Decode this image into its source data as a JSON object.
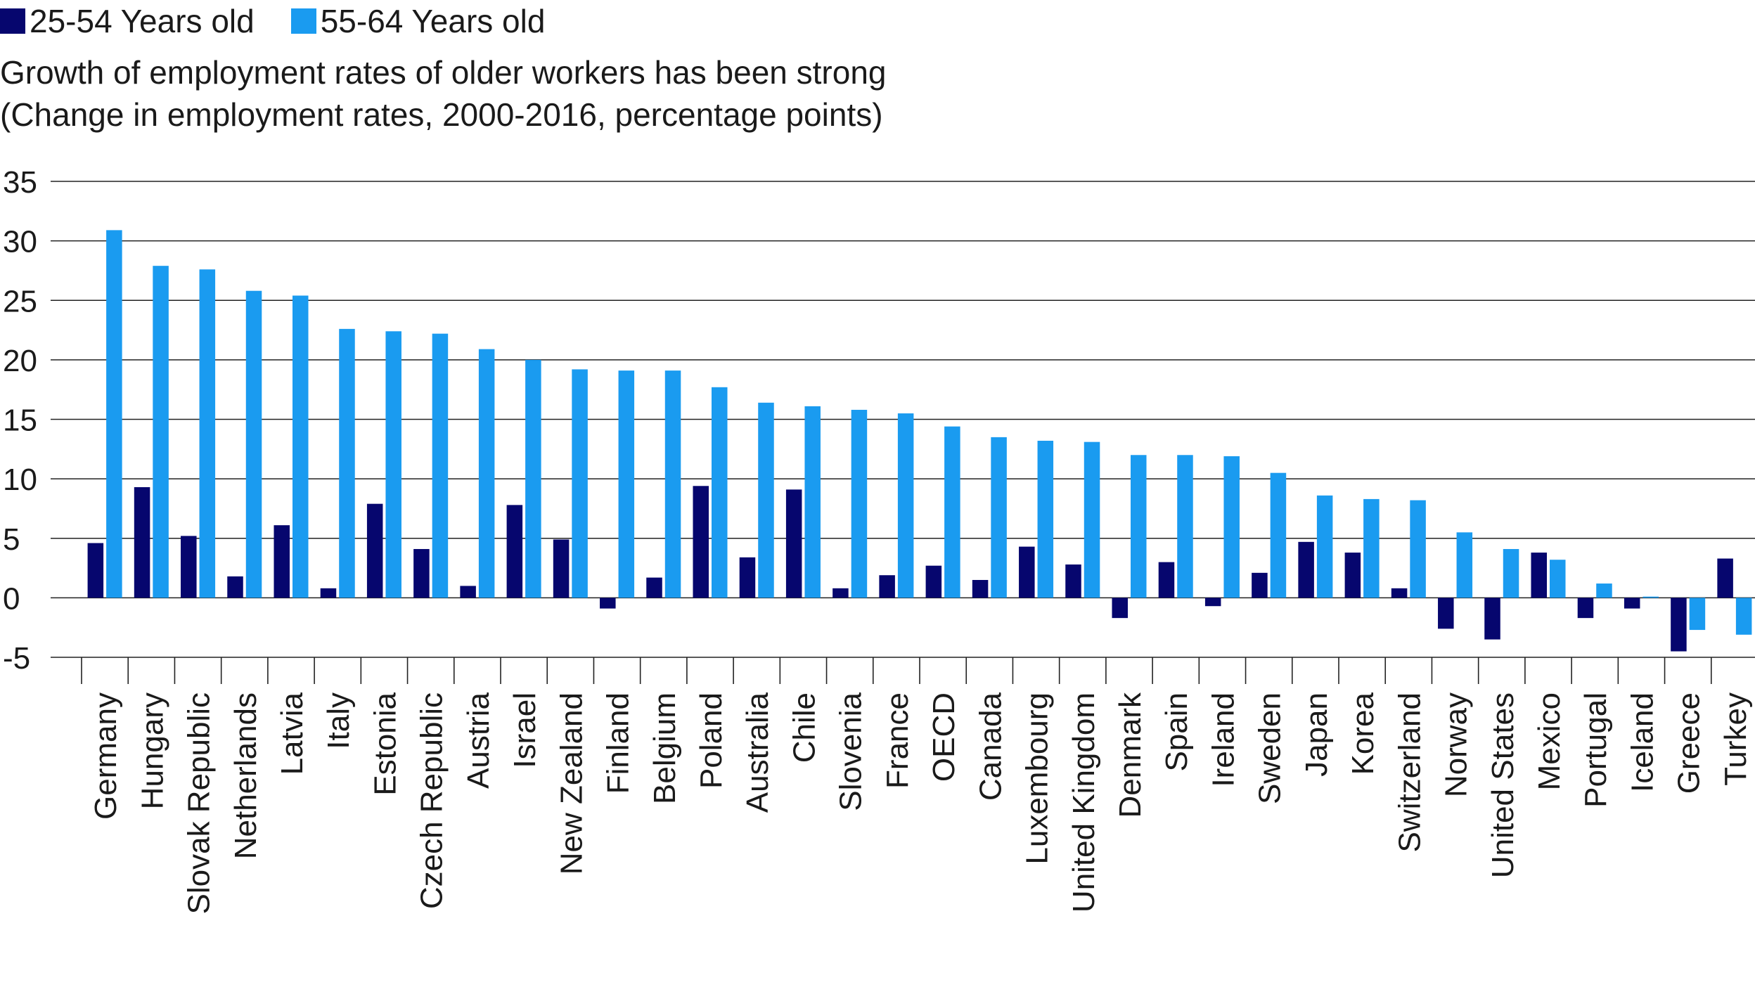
{
  "legend": [
    {
      "label": "25-54 Years old",
      "color": "#06066e"
    },
    {
      "label": "55-64 Years old",
      "color": "#1a9bf0"
    }
  ],
  "title_line1": "Growth of employment rates of older workers has been strong",
  "title_line2": "(Change in employment rates, 2000-2016, percentage points)",
  "chart_data": {
    "type": "bar",
    "title": "Growth of employment rates of older workers has been strong",
    "subtitle": "(Change in employment rates, 2000-2016, percentage points)",
    "xlabel": "",
    "ylabel": "",
    "ylim": [
      -5,
      35
    ],
    "yticks": [
      35,
      30,
      25,
      20,
      15,
      10,
      5,
      0,
      -5
    ],
    "grid": true,
    "legend_position": "top-left",
    "categories": [
      "Germany",
      "Hungary",
      "Slovak Republic",
      "Netherlands",
      "Latvia",
      "Italy",
      "Estonia",
      "Czech Republic",
      "Austria",
      "Israel",
      "New Zealand",
      "Finland",
      "Belgium",
      "Poland",
      "Australia",
      "Chile",
      "Slovenia",
      "France",
      "OECD",
      "Canada",
      "Luxembourg",
      "United Kingdom",
      "Denmark",
      "Spain",
      "Ireland",
      "Sweden",
      "Japan",
      "Korea",
      "Switzerland",
      "Norway",
      "United States",
      "Mexico",
      "Portugal",
      "Iceland",
      "Greece",
      "Turkey"
    ],
    "series": [
      {
        "name": "25-54 Years old",
        "color": "#06066e",
        "values": [
          4.6,
          9.3,
          5.2,
          1.8,
          6.1,
          0.8,
          7.9,
          4.1,
          1.0,
          7.8,
          4.9,
          -0.9,
          1.7,
          9.4,
          3.4,
          9.1,
          0.8,
          1.9,
          2.7,
          1.5,
          4.3,
          2.8,
          -1.7,
          3.0,
          -0.7,
          2.1,
          4.7,
          3.8,
          0.8,
          -2.6,
          -3.5,
          3.8,
          -1.7,
          -0.9,
          -4.5,
          3.3
        ]
      },
      {
        "name": "55-64 Years old",
        "color": "#1a9bf0",
        "values": [
          30.9,
          27.9,
          27.6,
          25.8,
          25.4,
          22.6,
          22.4,
          22.2,
          20.9,
          20.0,
          19.2,
          19.1,
          19.1,
          17.7,
          16.4,
          16.1,
          15.8,
          15.5,
          14.4,
          13.5,
          13.2,
          13.1,
          12.0,
          12.0,
          11.9,
          10.5,
          8.6,
          8.3,
          8.2,
          5.5,
          4.1,
          3.2,
          1.2,
          0.1,
          -2.7,
          -3.1
        ]
      }
    ]
  }
}
